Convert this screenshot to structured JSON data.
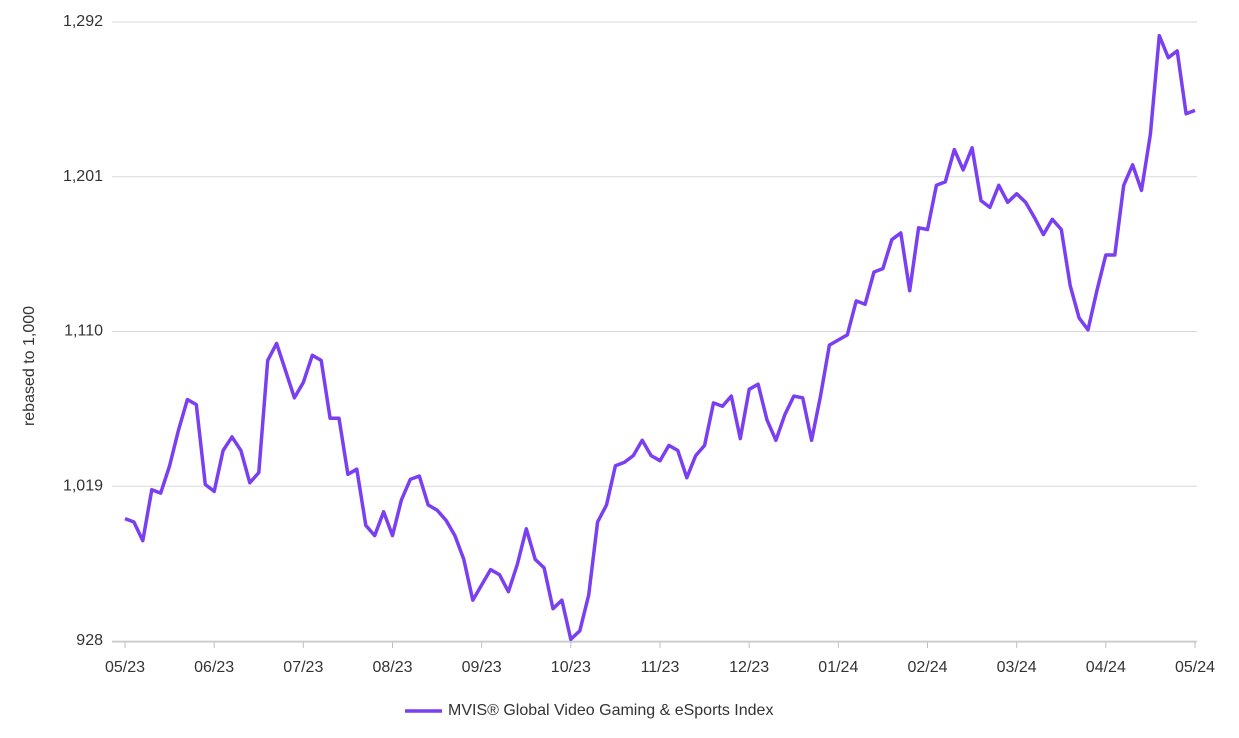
{
  "chart_data": {
    "type": "line",
    "y_label": "rebased to 1,000",
    "categories": [
      "05/23",
      null,
      null,
      null,
      null,
      null,
      null,
      null,
      null,
      null,
      "06/23",
      null,
      null,
      null,
      null,
      null,
      null,
      null,
      null,
      null,
      "07/23",
      null,
      null,
      null,
      null,
      null,
      null,
      null,
      null,
      null,
      "08/23",
      null,
      null,
      null,
      null,
      null,
      null,
      null,
      null,
      null,
      "09/23",
      null,
      null,
      null,
      null,
      null,
      null,
      null,
      null,
      null,
      "10/23",
      null,
      null,
      null,
      null,
      null,
      null,
      null,
      null,
      null,
      "11/23",
      null,
      null,
      null,
      null,
      null,
      null,
      null,
      null,
      null,
      "12/23",
      null,
      null,
      null,
      null,
      null,
      null,
      null,
      null,
      null,
      "01/24",
      null,
      null,
      null,
      null,
      null,
      null,
      null,
      null,
      null,
      "02/24",
      null,
      null,
      null,
      null,
      null,
      null,
      null,
      null,
      null,
      "03/24",
      null,
      null,
      null,
      null,
      null,
      null,
      null,
      null,
      null,
      "04/24",
      null,
      null,
      null,
      null,
      null,
      null,
      null,
      null,
      null,
      "05/24"
    ],
    "series": [
      {
        "name": "MVIS® Global Video Gaming & eSports Index",
        "color": "#7b3ff2",
        "values": [
          1000,
          998,
          987,
          1017,
          1015,
          1031,
          1052,
          1070,
          1067,
          1020,
          1016,
          1040,
          1048,
          1040,
          1021,
          1027,
          1093,
          1103,
          1087,
          1071,
          1080,
          1096,
          1093,
          1059,
          1059,
          1026,
          1029,
          996,
          990,
          1004,
          990,
          1011,
          1023,
          1025,
          1008,
          1005,
          999,
          990,
          976,
          952,
          961,
          970,
          967,
          957,
          973,
          994,
          976,
          971,
          947,
          952,
          929,
          934,
          955,
          998,
          1008,
          1031,
          1033,
          1037,
          1046,
          1037,
          1034,
          1043,
          1040,
          1024,
          1037,
          1043,
          1068,
          1066,
          1072,
          1047,
          1076,
          1079,
          1058,
          1046,
          1061,
          1072,
          1071,
          1046,
          1072,
          1102,
          1105,
          1108,
          1128,
          1126,
          1145,
          1147,
          1164,
          1168,
          1134,
          1171,
          1170,
          1196,
          1198,
          1217,
          1205,
          1218,
          1187,
          1183,
          1196,
          1186,
          1191,
          1186,
          1177,
          1167,
          1176,
          1170,
          1137,
          1118,
          1111,
          1134,
          1155,
          1155,
          1196,
          1208,
          1193,
          1226,
          1284,
          1271,
          1275,
          1238,
          1240
        ]
      }
    ],
    "ylim": [
      928,
      1292
    ],
    "yticks": [
      928,
      {
        "value": 1019,
        "label": "1,019"
      },
      {
        "value": 1110,
        "label": "1,110"
      },
      {
        "value": 1201,
        "label": "1,201"
      },
      {
        "value": 1292,
        "label": "1,292"
      }
    ],
    "grid": true,
    "legend": "bottom"
  }
}
